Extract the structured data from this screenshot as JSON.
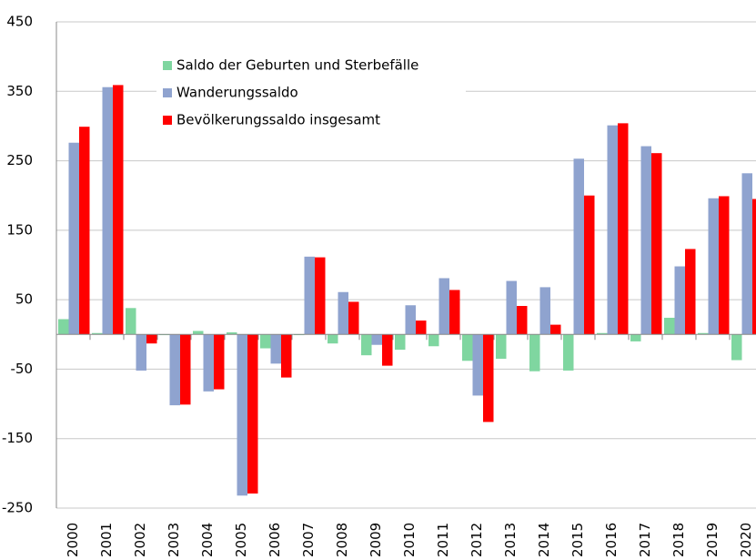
{
  "chart_data": {
    "type": "bar",
    "categories": [
      "2000",
      "2001",
      "2002",
      "2003",
      "2004",
      "2005",
      "2006",
      "2007",
      "2008",
      "2009",
      "2010",
      "2011",
      "2012",
      "2013",
      "2014",
      "2015",
      "2016",
      "2017",
      "2018",
      "2019",
      "2020"
    ],
    "series": [
      {
        "name": "Saldo der Geburten und Sterbefälle",
        "color": "#7fd6a0",
        "values": [
          22,
          2,
          38,
          -1,
          5,
          3,
          -20,
          -1,
          -13,
          -30,
          -22,
          -17,
          -38,
          -35,
          -53,
          -52,
          2,
          -10,
          24,
          2,
          -37
        ]
      },
      {
        "name": "Wanderungssaldo",
        "color": "#8fa3cf",
        "values": [
          276,
          356,
          -52,
          -102,
          -82,
          -232,
          -42,
          112,
          61,
          -15,
          42,
          81,
          -88,
          77,
          68,
          253,
          301,
          271,
          98,
          196,
          232
        ]
      },
      {
        "name": "Bevölkerungssaldo insgesamt",
        "color": "#ff0000",
        "values": [
          299,
          359,
          -13,
          -101,
          -79,
          -229,
          -62,
          111,
          47,
          -45,
          20,
          64,
          -126,
          41,
          14,
          200,
          304,
          261,
          123,
          199,
          195
        ]
      }
    ],
    "ylim": [
      -250,
      450
    ],
    "yticks": [
      -250,
      -150,
      -50,
      50,
      150,
      250,
      350,
      450
    ],
    "grid": true
  }
}
